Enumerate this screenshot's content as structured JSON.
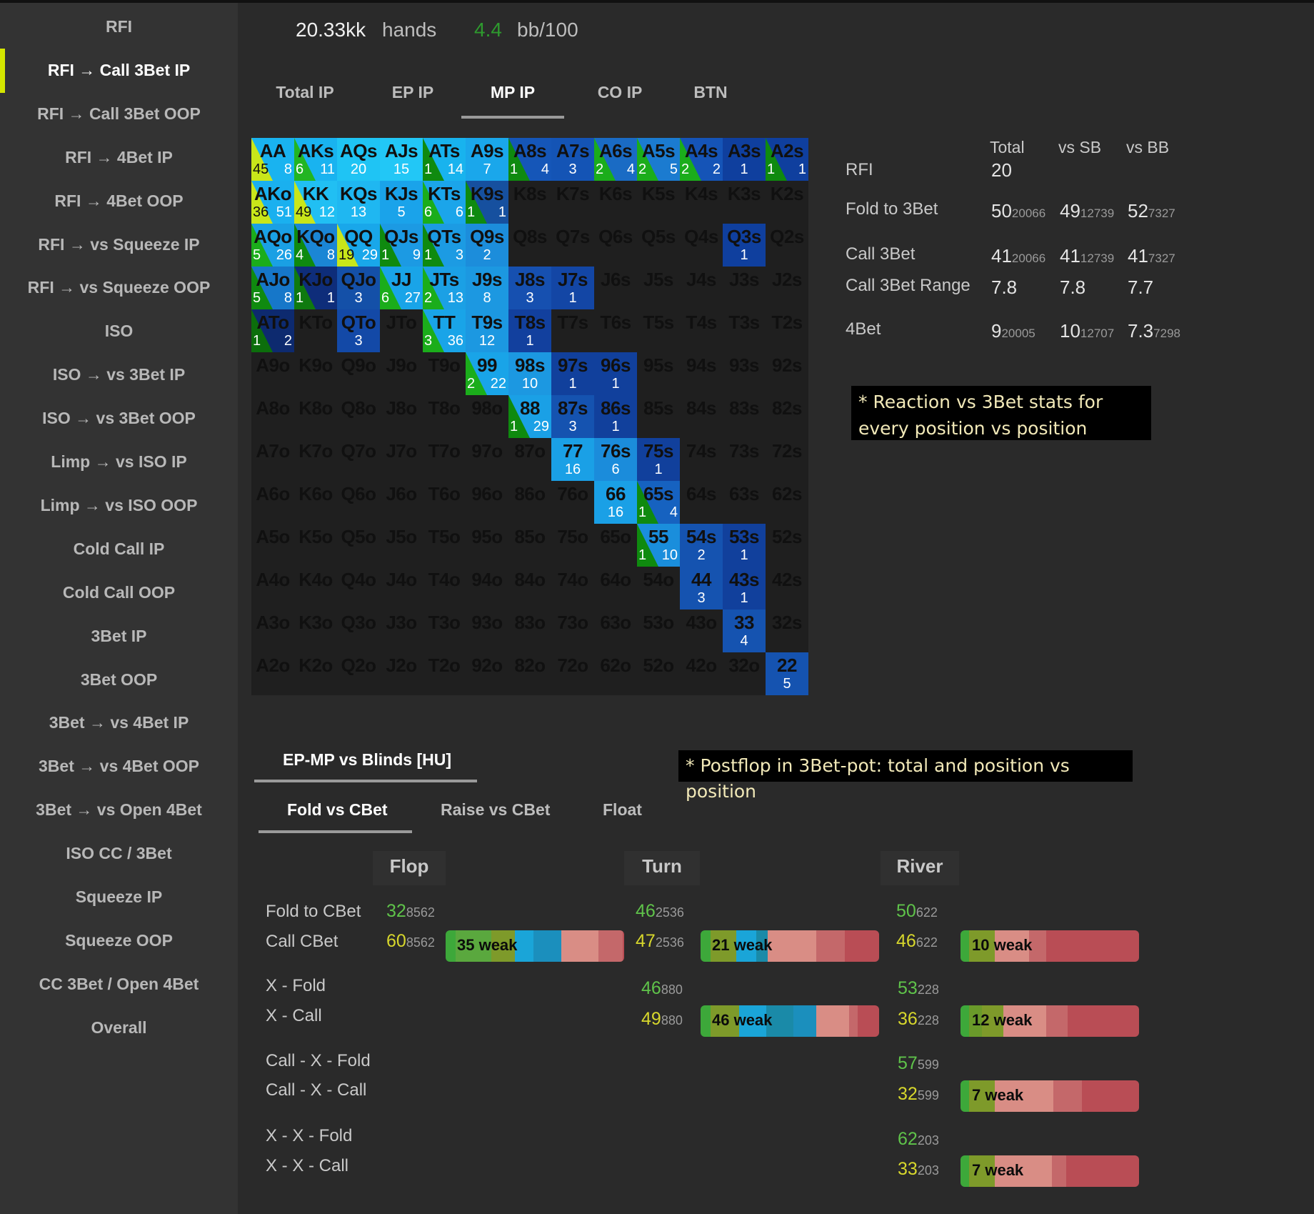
{
  "sidebar": {
    "items": [
      "RFI",
      "RFI → Call 3Bet IP",
      "RFI → Call 3Bet OOP",
      "RFI → 4Bet IP",
      "RFI → 4Bet OOP",
      "RFI → vs Squeeze IP",
      "RFI → vs Squeeze OOP",
      "ISO",
      "ISO → vs 3Bet IP",
      "ISO → vs 3Bet OOP",
      "Limp → vs ISO IP",
      "Limp → vs ISO OOP",
      "Cold Call IP",
      "Cold Call OOP",
      "3Bet IP",
      "3Bet OOP",
      "3Bet → vs 4Bet IP",
      "3Bet → vs 4Bet OOP",
      "3Bet → vs Open 4Bet",
      "ISO CC / 3Bet",
      "Squeeze IP",
      "Squeeze OOP",
      "CC 3Bet / Open 4Bet",
      "Overall"
    ],
    "active_index": 1
  },
  "header": {
    "hands_value": "20.33kk",
    "hands_label": "hands",
    "winrate_value": "4.4",
    "winrate_label": "bb/100"
  },
  "position_tabs": {
    "items": [
      "Total IP",
      "EP IP",
      "MP IP",
      "CO IP",
      "BTN"
    ],
    "active": "MP IP"
  },
  "matrix": {
    "cells": {
      "AA": [
        "45",
        "8"
      ],
      "AKs": [
        "6",
        "11"
      ],
      "AQs": [
        "20"
      ],
      "AJs": [
        "15"
      ],
      "ATs": [
        "1",
        "14"
      ],
      "A9s": [
        "7"
      ],
      "A8s": [
        "1",
        "4"
      ],
      "A7s": [
        "3"
      ],
      "A6s": [
        "2",
        "4"
      ],
      "A5s": [
        "2",
        "5"
      ],
      "A4s": [
        "2",
        "2"
      ],
      "A3s": [
        "1"
      ],
      "A2s": [
        "1",
        "1"
      ],
      "AKo": [
        "36",
        "51"
      ],
      "KK": [
        "49",
        "12"
      ],
      "KQs": [
        "13"
      ],
      "KJs": [
        "5"
      ],
      "KTs": [
        "6",
        "6"
      ],
      "K9s": [
        "1",
        "1"
      ],
      "AQo": [
        "5",
        "26"
      ],
      "KQo": [
        "4",
        "8"
      ],
      "QQ": [
        "19",
        "29"
      ],
      "QJs": [
        "1",
        "9"
      ],
      "QTs": [
        "1",
        "3"
      ],
      "Q9s": [
        "2"
      ],
      "Q3s": [
        "1"
      ],
      "AJo": [
        "5",
        "8"
      ],
      "KJo": [
        "1",
        "1"
      ],
      "QJo": [
        "3"
      ],
      "JJ": [
        "6",
        "27"
      ],
      "JTs": [
        "2",
        "13"
      ],
      "J9s": [
        "8"
      ],
      "J8s": [
        "3"
      ],
      "J7s": [
        "1"
      ],
      "ATo": [
        "1",
        "2"
      ],
      "QTo": [
        "3"
      ],
      "TT": [
        "3",
        "36"
      ],
      "T9s": [
        "12"
      ],
      "T8s": [
        "1"
      ],
      "99": [
        "2",
        "22"
      ],
      "98s": [
        "10"
      ],
      "97s": [
        "1"
      ],
      "96s": [
        "1"
      ],
      "88": [
        "1",
        "29"
      ],
      "87s": [
        "3"
      ],
      "86s": [
        "1"
      ],
      "77": [
        "16"
      ],
      "76s": [
        "6"
      ],
      "75s": [
        "1"
      ],
      "66": [
        "16"
      ],
      "65s": [
        "1",
        "4"
      ],
      "55": [
        "1",
        "10"
      ],
      "54s": [
        "2"
      ],
      "53s": [
        "1"
      ],
      "44": [
        "3"
      ],
      "43s": [
        "1"
      ],
      "33": [
        "4"
      ],
      "22": [
        "5"
      ]
    }
  },
  "stats_table": {
    "headers": [
      "Total",
      "vs SB",
      "vs BB"
    ],
    "rows": [
      {
        "label": "RFI",
        "values": [
          [
            "20",
            ""
          ]
        ]
      },
      {
        "label": "Fold to 3Bet",
        "values": [
          [
            "50",
            "20066"
          ],
          [
            "49",
            "12739"
          ],
          [
            "52",
            "7327"
          ]
        ]
      },
      {
        "label": "Call 3Bet",
        "values": [
          [
            "41",
            "20066"
          ],
          [
            "41",
            "12739"
          ],
          [
            "41",
            "7327"
          ]
        ]
      },
      {
        "label": "Call 3Bet Range",
        "values": [
          [
            "7.8",
            ""
          ],
          [
            "7.8",
            ""
          ],
          [
            "7.7",
            ""
          ]
        ]
      },
      {
        "label": "4Bet",
        "values": [
          [
            "9",
            "20005"
          ],
          [
            "10",
            "12707"
          ],
          [
            "7.3",
            "7298"
          ]
        ]
      }
    ]
  },
  "notes": {
    "reaction": "* Reaction vs 3Bet stats for every position vs position",
    "postflop": "* Postflop in 3Bet-pot: total and position vs position"
  },
  "postflop": {
    "section_tab": "EP-MP vs Blinds [HU]",
    "sub_tabs": [
      "Fold vs CBet",
      "Raise vs CBet",
      "Float"
    ],
    "active_sub_tab": "Fold vs CBet",
    "streets": [
      "Flop",
      "Turn",
      "River"
    ],
    "row_labels": [
      "Fold to CBet",
      "Call CBet",
      "X - Fold",
      "X - Call",
      "Call - X - Fold",
      "Call - X - Call",
      "X - X - Fold",
      "X - X - Call"
    ],
    "flop": {
      "fold_to_cbet": [
        "32",
        "8562"
      ],
      "call_cbet": [
        "60",
        "8562"
      ],
      "call_bar_label": "35 weak"
    },
    "turn": {
      "fold_to_cbet": [
        "46",
        "2536"
      ],
      "call_cbet": [
        "47",
        "2536"
      ],
      "call_bar_label": "21 weak",
      "x_fold": [
        "46",
        "880"
      ],
      "x_call": [
        "49",
        "880"
      ],
      "x_call_bar_label": "46 weak"
    },
    "river": {
      "fold_to_cbet": [
        "50",
        "622"
      ],
      "call_cbet": [
        "46",
        "622"
      ],
      "call_bar_label": "10 weak",
      "x_fold": [
        "53",
        "228"
      ],
      "x_call": [
        "36",
        "228"
      ],
      "x_call_bar_label": "12 weak",
      "cxf": [
        "57",
        "599"
      ],
      "cxc": [
        "32",
        "599"
      ],
      "cxc_bar_label": "7 weak",
      "xxf": [
        "62",
        "203"
      ],
      "xxc": [
        "33",
        "203"
      ],
      "xxc_bar_label": "7 weak"
    }
  },
  "colors": {
    "accent_indicator": "#d5e600",
    "green_value": "#5fc34a",
    "yellow_value": "#d7d72c"
  }
}
